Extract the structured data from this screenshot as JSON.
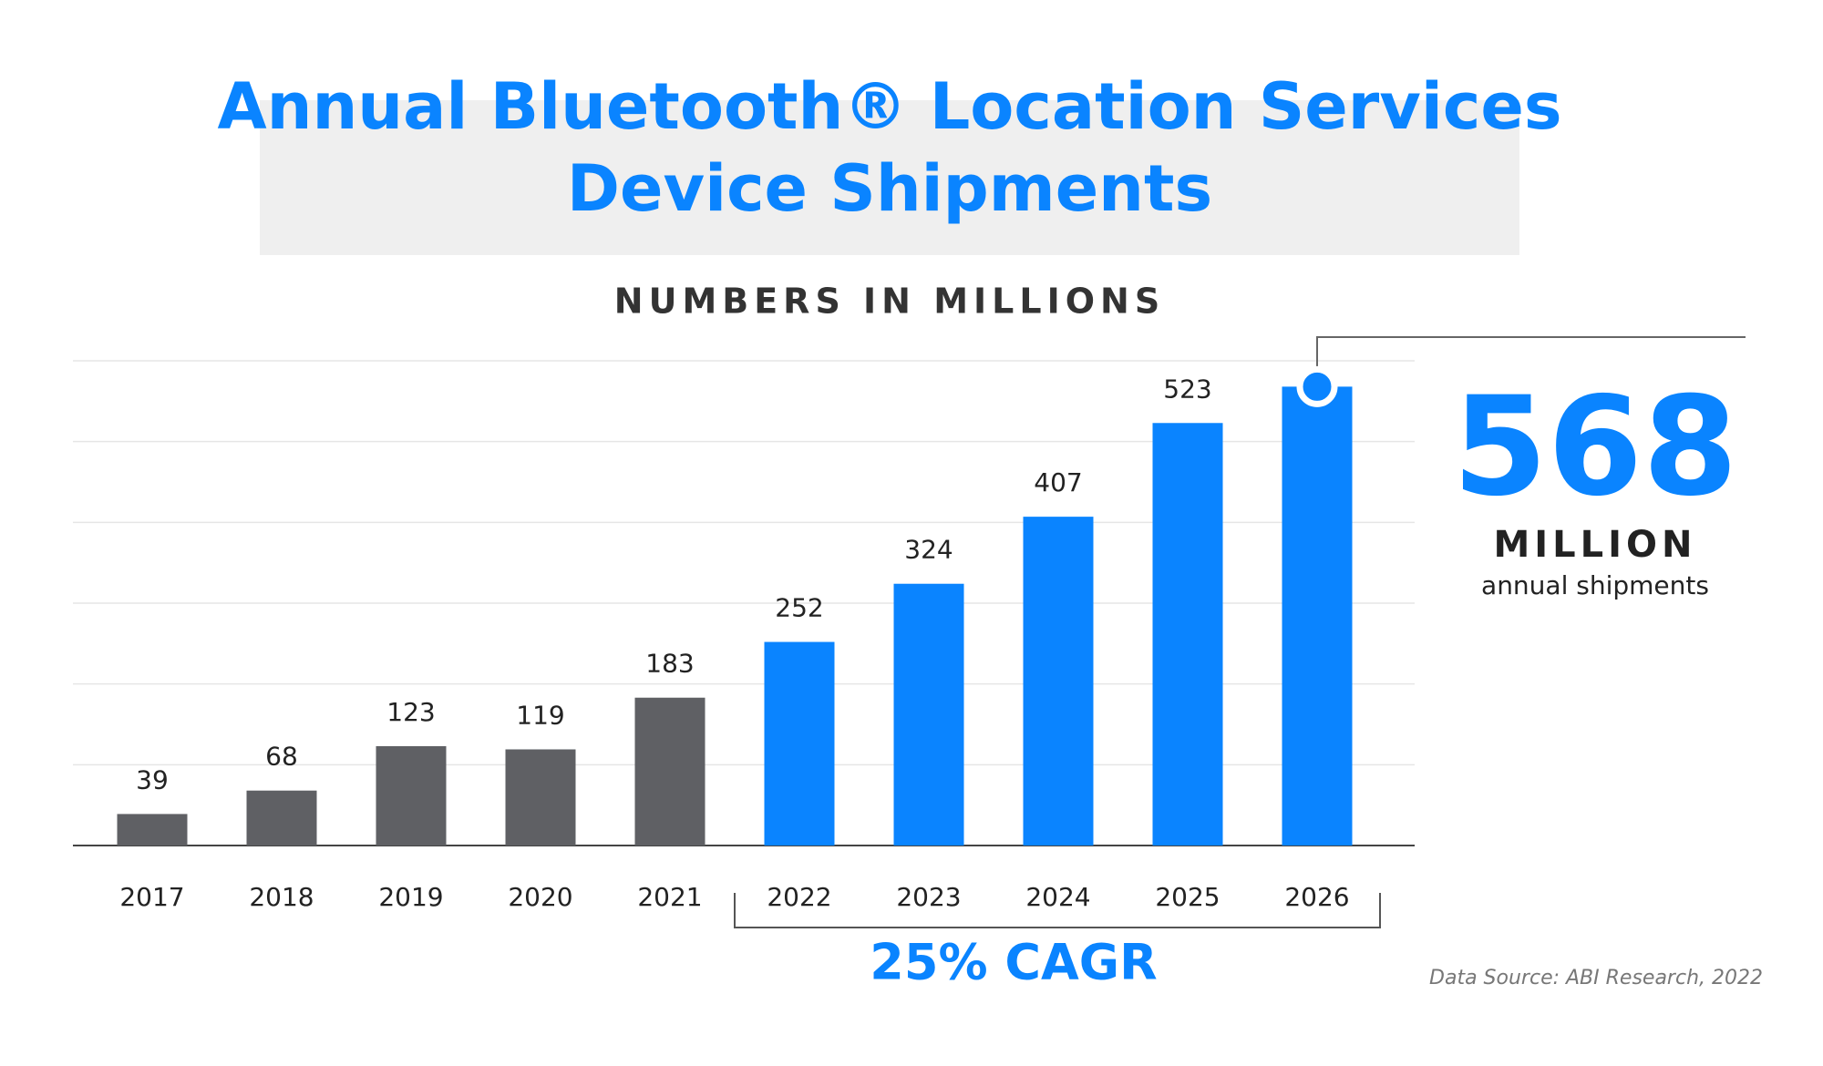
{
  "chart_data": {
    "type": "bar",
    "title": [
      "Annual Bluetooth® Location Services",
      "Device Shipments"
    ],
    "subtitle": "NUMBERS IN MILLIONS",
    "categories": [
      "2017",
      "2018",
      "2019",
      "2020",
      "2021",
      "2022",
      "2023",
      "2024",
      "2025",
      "2026"
    ],
    "values": [
      39,
      68,
      123,
      119,
      183,
      252,
      324,
      407,
      523,
      568
    ],
    "colors": [
      "#5f6064",
      "#5f6064",
      "#5f6064",
      "#5f6064",
      "#5f6064",
      "#0a84ff",
      "#0a84ff",
      "#0a84ff",
      "#0a84ff",
      "#0a84ff"
    ],
    "ylim": [
      0,
      600
    ],
    "yticks": [
      0,
      100,
      200,
      300,
      400,
      500,
      600
    ],
    "grid": true,
    "callout_unit": "MILLION",
    "callout_text": "annual shipments",
    "annotation": "25% CAGR",
    "source": "Data Source: ABI Research, 2022"
  }
}
